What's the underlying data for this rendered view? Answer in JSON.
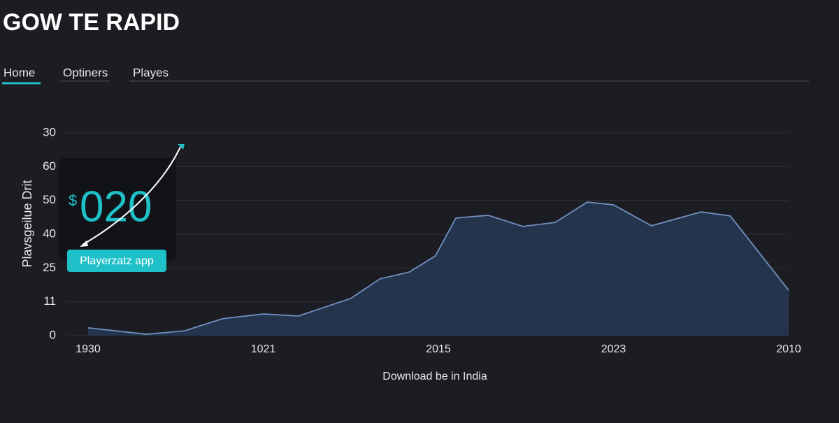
{
  "header": {
    "title": "GOW TE RAPID"
  },
  "nav": {
    "tabs": [
      "Home",
      "Optiners",
      "Playes"
    ]
  },
  "card": {
    "currency": "$",
    "amount": "020",
    "button": "Playerzatz app"
  },
  "chart_data": {
    "type": "area",
    "ylabel": "Plavsgeilue Drit",
    "xlabel": "Download be in India",
    "color": "#7090c0",
    "fill": "#24344d",
    "grid": true,
    "x": [
      0,
      2,
      3.3,
      4.6,
      6,
      7.2,
      9,
      10,
      11,
      11.9,
      12.6,
      13.7,
      14.9,
      16,
      17.1,
      18,
      19.3,
      21,
      22,
      24
    ],
    "values": [
      2.3,
      0.4,
      1.4,
      5,
      6.4,
      5.8,
      11,
      16.8,
      18.8,
      23.6,
      34.8,
      35.6,
      32.3,
      33.5,
      39.5,
      38.7,
      32.5,
      36.6,
      35.4,
      13.4
    ],
    "xlim": [
      0,
      24
    ],
    "xticks": [
      {
        "value": 0,
        "label": "1930"
      },
      {
        "value": 6,
        "label": "1021"
      },
      {
        "value": 12,
        "label": "2015"
      },
      {
        "value": 18,
        "label": "2023"
      },
      {
        "value": 24,
        "label": "2010"
      }
    ],
    "ylim": [
      0,
      60
    ],
    "yticks": [
      0,
      {
        "value": 10,
        "label": "11"
      },
      {
        "value": 20,
        "label": "25"
      },
      {
        "value": 30,
        "label": "40"
      },
      {
        "value": 40,
        "label": "50"
      },
      {
        "value": 50,
        "label": "60"
      },
      {
        "value": 60,
        "label": "30"
      }
    ]
  }
}
